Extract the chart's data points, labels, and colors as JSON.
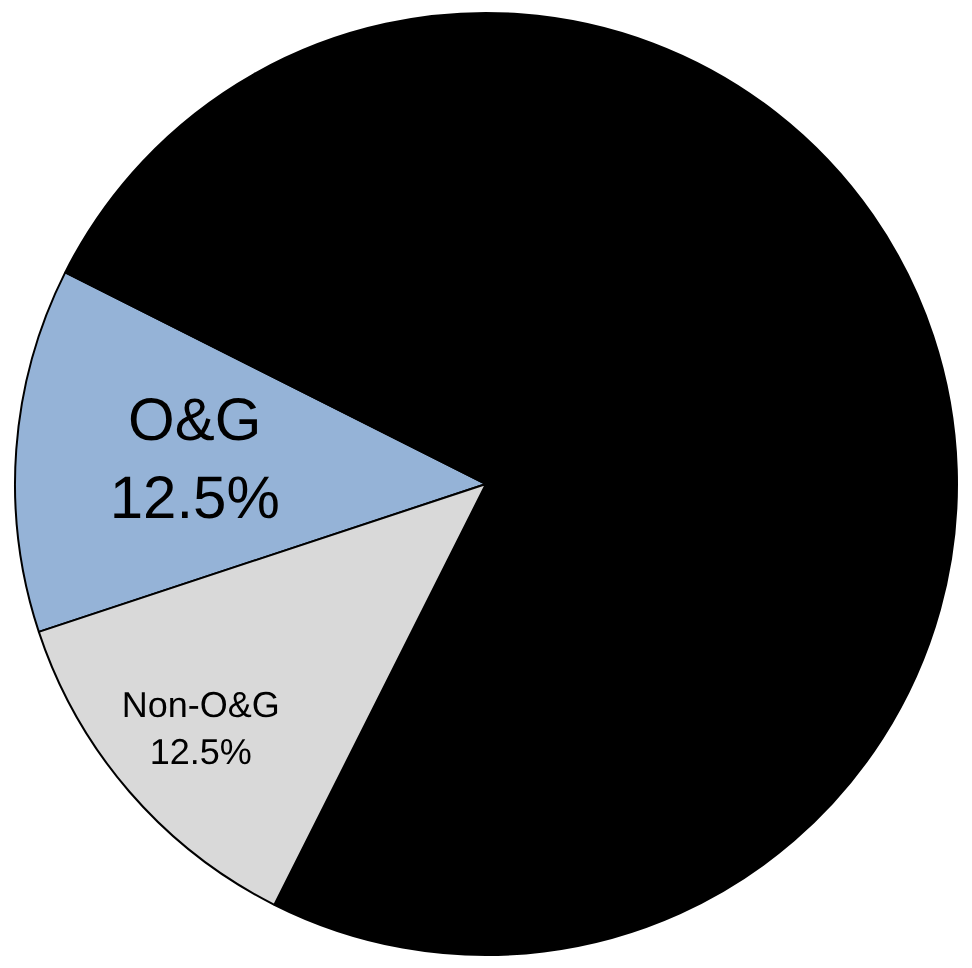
{
  "chart_data": {
    "type": "pie",
    "categories": [
      "O&G",
      null,
      "Non-O&G"
    ],
    "values": [
      12.5,
      75,
      12.5
    ],
    "colors": [
      "#95b3d7",
      "#000000",
      "#d9d9d9"
    ],
    "value_labels": [
      "12.5%",
      null,
      "12.5%"
    ],
    "legend": false
  }
}
